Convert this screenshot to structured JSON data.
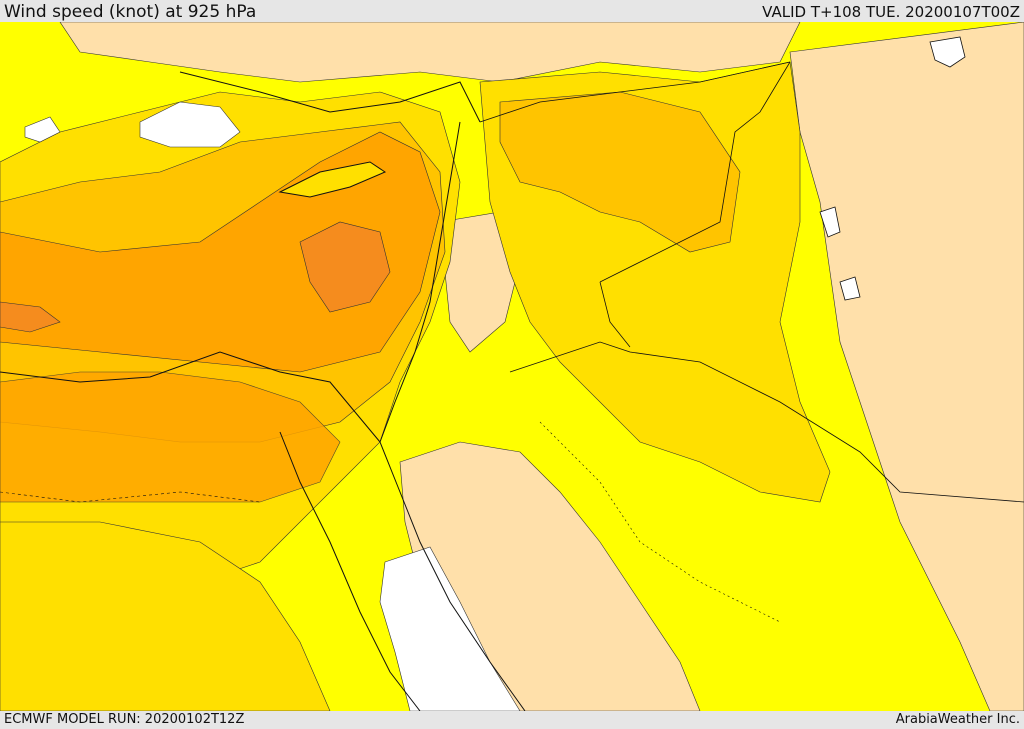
{
  "header": {
    "title": "Wind speed (knot) at 925 hPa",
    "valid_time": "VALID T+108 TUE. 20200107T00Z"
  },
  "footer": {
    "model_run": "ECMWF MODEL RUN: 20200102T12Z",
    "credit": "ArabiaWeather Inc."
  },
  "map": {
    "variable": "wind speed",
    "units": "knot",
    "level_hpa": 925,
    "palette": {
      "calm": "#ffffff",
      "low": "#ffe0aa",
      "light_yellow": "#ffff00",
      "mid_yellow": "#ffe000",
      "gold": "#ffc400",
      "orange": "#ffa500",
      "dark_orange": "#f58c1e"
    }
  }
}
